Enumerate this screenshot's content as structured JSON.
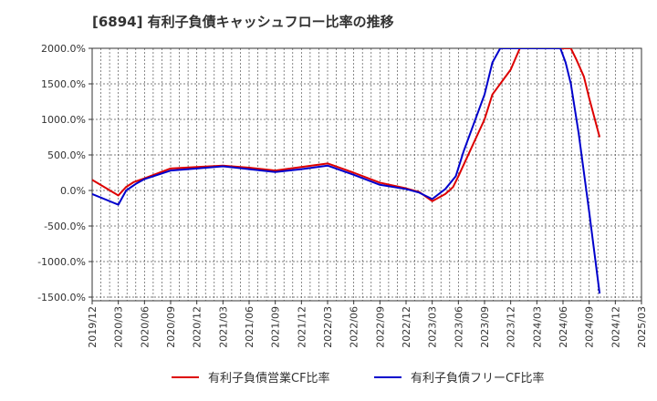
{
  "chart_data": {
    "type": "line",
    "title": "[6894]  有利子負債キャッシュフロー比率の推移",
    "xlabel": "",
    "ylabel": "",
    "x_tick_labels": [
      "2019/12",
      "2020/03",
      "2020/06",
      "2020/09",
      "2020/12",
      "2021/03",
      "2021/06",
      "2021/09",
      "2021/12",
      "2022/03",
      "2022/06",
      "2022/09",
      "2022/12",
      "2023/03",
      "2023/06",
      "2023/09",
      "2023/12",
      "2024/03",
      "2024/06",
      "2024/09",
      "2024/12",
      "2025/03"
    ],
    "y_tick_labels": [
      "2000.0%",
      "1500.0%",
      "1000.0%",
      "500.0%",
      "0.0%",
      "-500.0%",
      "-1000.0%",
      "-1500.0%"
    ],
    "y_ticks": [
      2000,
      1500,
      1000,
      500,
      0,
      -500,
      -1000,
      -1500
    ],
    "ylim": [
      -1550,
      2000
    ],
    "grid": true,
    "legend_position": "bottom",
    "series": [
      {
        "name": "有利子負債営業CF比率",
        "color": "#dd0000",
        "points": [
          [
            0,
            150
          ],
          [
            1.0,
            -70
          ],
          [
            1.3,
            50
          ],
          [
            1.6,
            120
          ],
          [
            2.0,
            170
          ],
          [
            3.0,
            310
          ],
          [
            4.0,
            330
          ],
          [
            5.0,
            350
          ],
          [
            6.0,
            320
          ],
          [
            7.0,
            280
          ],
          [
            8.0,
            330
          ],
          [
            9.0,
            380
          ],
          [
            10.0,
            250
          ],
          [
            11.0,
            110
          ],
          [
            12.0,
            30
          ],
          [
            12.5,
            -20
          ],
          [
            13.0,
            -150
          ],
          [
            13.5,
            -50
          ],
          [
            13.8,
            50
          ],
          [
            14.0,
            200
          ],
          [
            14.5,
            600
          ],
          [
            15.0,
            1000
          ],
          [
            15.3,
            1350
          ],
          [
            16.0,
            1700
          ],
          [
            16.35,
            2000
          ],
          [
            18.3,
            2000
          ],
          [
            18.5,
            1850
          ],
          [
            18.8,
            1600
          ],
          [
            19.0,
            1300
          ],
          [
            19.4,
            750
          ]
        ]
      },
      {
        "name": "有利子負債フリーCF比率",
        "color": "#0000cc",
        "points": [
          [
            0,
            -50
          ],
          [
            1.0,
            -200
          ],
          [
            1.3,
            0
          ],
          [
            1.7,
            100
          ],
          [
            2.0,
            160
          ],
          [
            3.0,
            280
          ],
          [
            4.0,
            310
          ],
          [
            5.0,
            340
          ],
          [
            6.0,
            300
          ],
          [
            7.0,
            260
          ],
          [
            8.0,
            300
          ],
          [
            9.0,
            350
          ],
          [
            10.0,
            220
          ],
          [
            11.0,
            80
          ],
          [
            12.0,
            20
          ],
          [
            12.5,
            -30
          ],
          [
            13.0,
            -120
          ],
          [
            13.5,
            20
          ],
          [
            13.9,
            200
          ],
          [
            14.2,
            550
          ],
          [
            14.5,
            850
          ],
          [
            15.0,
            1350
          ],
          [
            15.3,
            1800
          ],
          [
            15.6,
            2000
          ],
          [
            17.9,
            2000
          ],
          [
            18.1,
            1800
          ],
          [
            18.3,
            1500
          ],
          [
            18.6,
            800
          ],
          [
            19.0,
            -300
          ],
          [
            19.4,
            -1450
          ]
        ]
      }
    ]
  }
}
